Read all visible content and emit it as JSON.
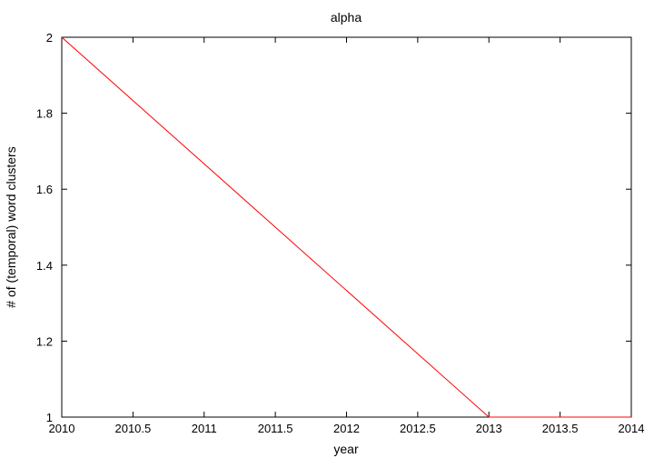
{
  "chart_data": {
    "type": "line",
    "title": "alpha",
    "xlabel": "year",
    "ylabel": "# of (temporal) word clusters",
    "xlim": [
      2010,
      2014
    ],
    "ylim": [
      1,
      2
    ],
    "x_ticks": [
      {
        "value": 2010,
        "label": "2010"
      },
      {
        "value": 2010.5,
        "label": "2010.5"
      },
      {
        "value": 2011,
        "label": "2011"
      },
      {
        "value": 2011.5,
        "label": "2011.5"
      },
      {
        "value": 2012,
        "label": "2012"
      },
      {
        "value": 2012.5,
        "label": "2012.5"
      },
      {
        "value": 2013,
        "label": "2013"
      },
      {
        "value": 2013.5,
        "label": "2013.5"
      },
      {
        "value": 2014,
        "label": "2014"
      }
    ],
    "y_ticks": [
      {
        "value": 1,
        "label": "1"
      },
      {
        "value": 1.2,
        "label": "1.2"
      },
      {
        "value": 1.4,
        "label": "1.4"
      },
      {
        "value": 1.6,
        "label": "1.6"
      },
      {
        "value": 1.8,
        "label": "1.8"
      },
      {
        "value": 2,
        "label": "2"
      }
    ],
    "grid": false,
    "series": [
      {
        "color": "#ff0000",
        "x": [
          2010,
          2013,
          2014
        ],
        "y": [
          2,
          1,
          1
        ]
      }
    ]
  }
}
